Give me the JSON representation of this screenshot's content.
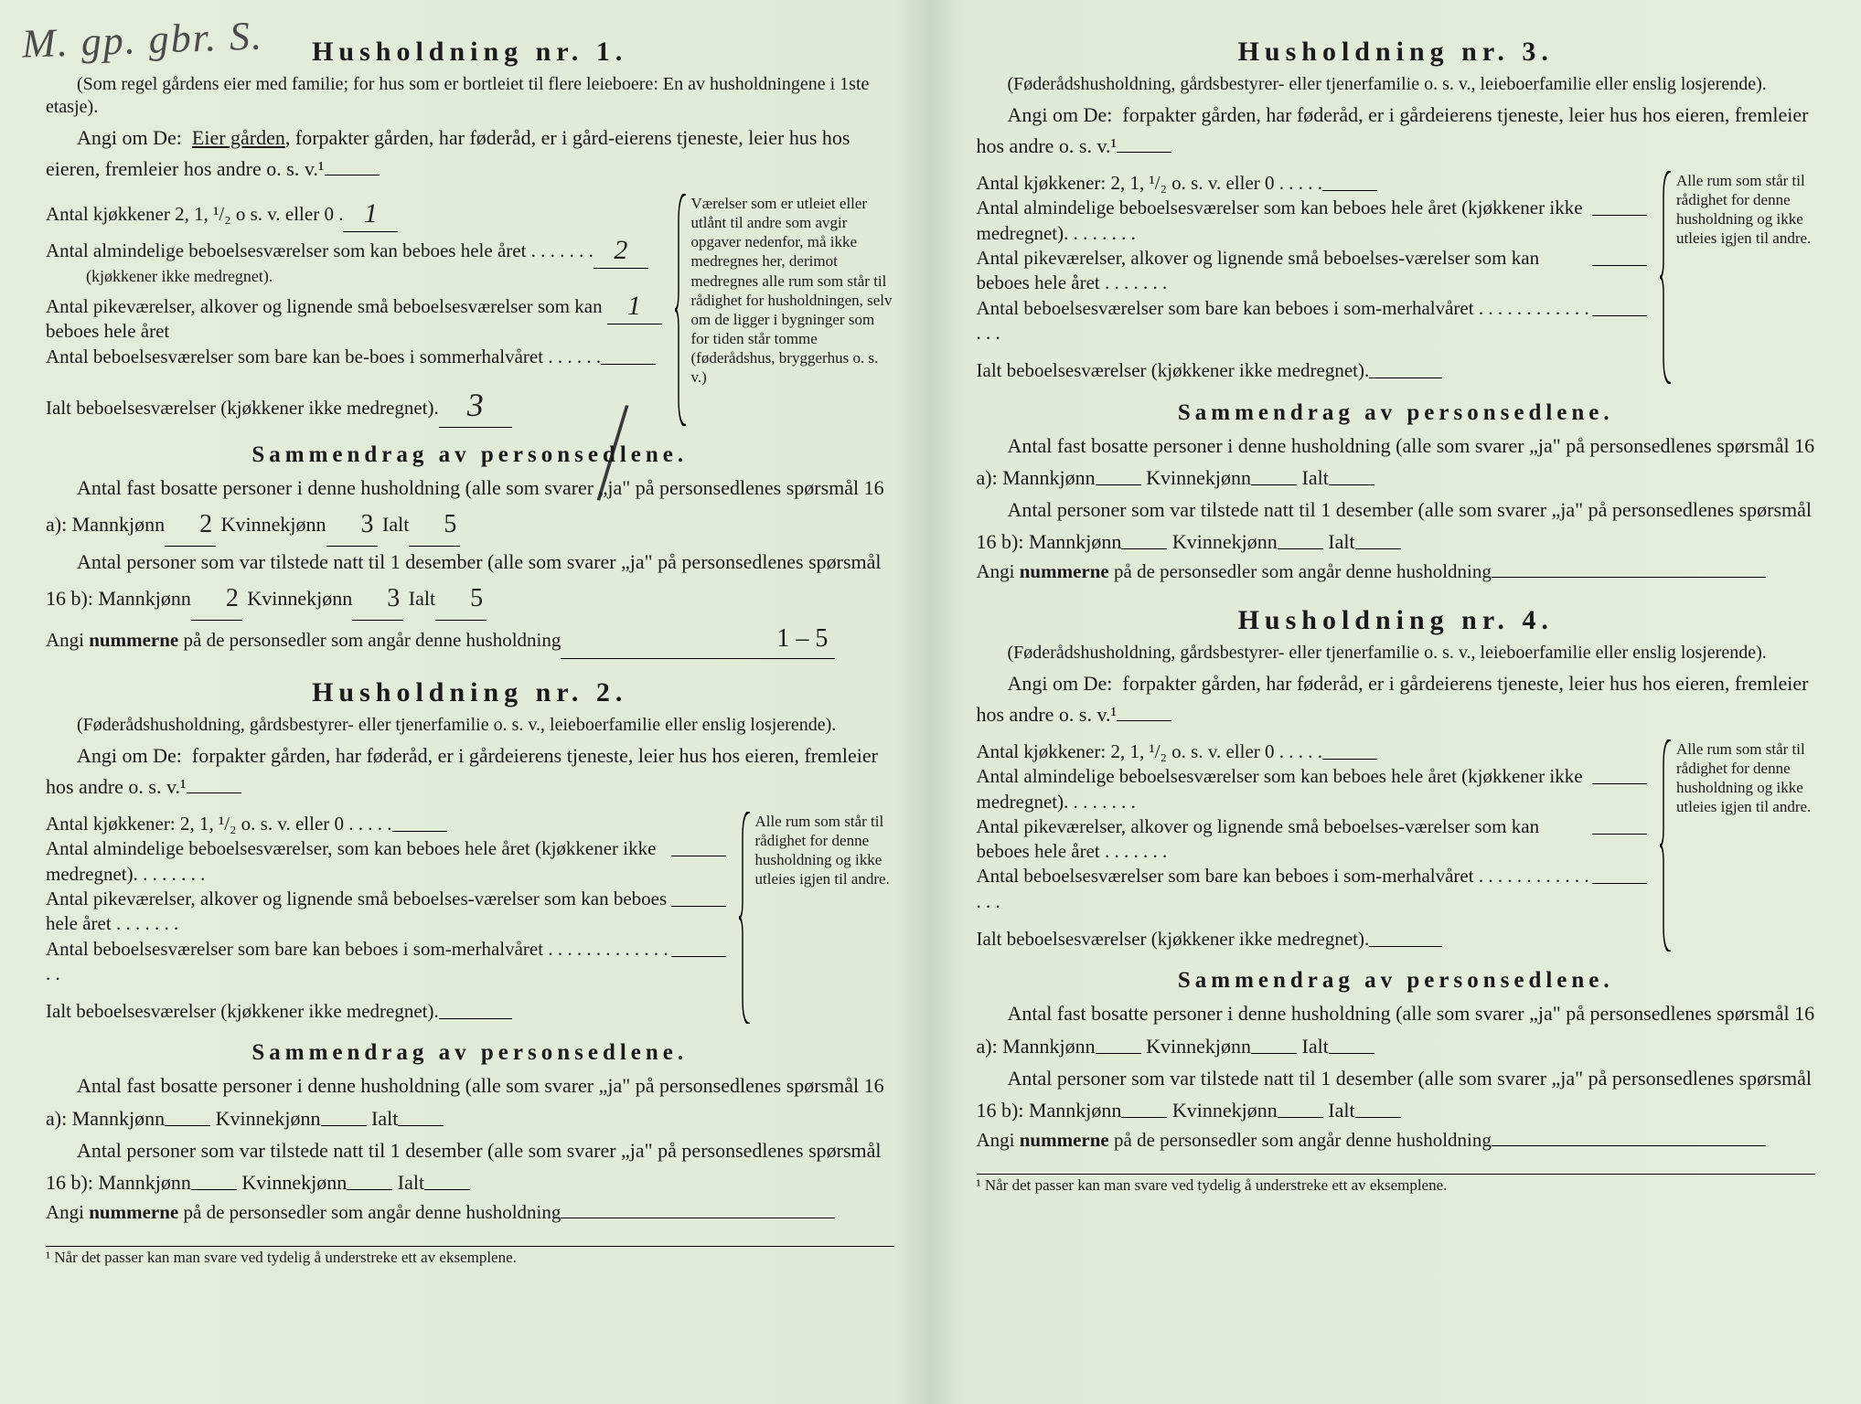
{
  "handwriting_topleft": "M. gp. gbr. S.",
  "households": [
    {
      "title": "Husholdning nr. 1.",
      "note": "(Som regel gårdens eier med familie; for hus som er bortleiet til flere leieboere: En av husholdningene i 1ste etasje).",
      "angi_prefix": "Angi om De:",
      "angi_rest_before": "Eier gården",
      "angi_rest_after": ", forpakter gården, har føderåd, er i gård-eierens tjeneste, leier hus hos eieren, fremleier hos andre o. s. v.¹",
      "angi_underline": true,
      "rooms": {
        "kjokkener_label": "Antal kjøkkener 2, 1, ¹/₂ o s. v. eller 0 .",
        "kjokkener_val": "1",
        "alm_label": "Antal almindelige beboelsesværelser som kan beboes hele året . . . . . . .",
        "alm_sub": "(kjøkkener ikke medregnet).",
        "alm_val": "2",
        "pike_label": "Antal pikeværelser, alkover og lignende små beboelsesværelser som kan beboes hele året",
        "pike_val": "1",
        "sommer_label": "Antal beboelsesværelser som bare kan be-boes i sommerhalvåret . . . . . .",
        "sommer_val": "",
        "ialt_label": "Ialt beboelsesværelser (kjøkkener ikke medregnet).",
        "ialt_val": "3",
        "sidenote": "Værelser som er utleiet eller utlånt til andre som avgir opgaver nedenfor, må ikke medregnes her, derimot medregnes alle rum som står til rådighet for husholdningen, selv om de ligger i bygninger som for tiden står tomme (føderådshus, bryggerhus o. s. v.)"
      },
      "samm": {
        "title": "Sammendrag av personsedlene.",
        "l1a": "Antal fast bosatte personer i denne husholdning (alle som svarer „ja\" på personsedlenes spørsmål 16 a): Mannkjønn",
        "l1_m": "2",
        "l1_kv_lbl": "Kvinnekjønn",
        "l1_k": "3",
        "l1_i_lbl": "Ialt",
        "l1_i": "5",
        "l2a": "Antal personer som var tilstede natt til 1 desember (alle som svarer „ja\" på personsedlenes spørsmål 16 b): Mannkjønn",
        "l2_m": "2",
        "l2_k": "3",
        "l2_i": "5",
        "angi_num": "Angi nummerne på de personsedler som angår denne husholdning",
        "num_val": "1 – 5"
      }
    },
    {
      "title": "Husholdning nr. 2.",
      "note": "(Føderådshusholdning, gårdsbestyrer- eller tjenerfamilie o. s. v., leieboerfamilie eller enslig losjerende).",
      "angi_prefix": "Angi om De:",
      "angi_rest_before": "",
      "angi_rest_after": "forpakter gården, har føderåd, er i gårdeierens tjeneste, leier hus hos eieren, fremleier hos andre o. s. v.¹",
      "angi_underline": false,
      "rooms": {
        "kjokkener_label": "Antal kjøkkener: 2, 1, ¹/₂ o. s. v. eller 0 . . . . .",
        "kjokkener_val": "",
        "alm_label": "Antal almindelige beboelsesværelser, som kan beboes hele året (kjøkkener ikke medregnet). . . . . . . .",
        "alm_sub": "",
        "alm_val": "",
        "pike_label": "Antal pikeværelser, alkover og lignende små beboelses-værelser som kan beboes hele året . . . . . . .",
        "pike_val": "",
        "sommer_label": "Antal beboelsesværelser som bare kan beboes i som-merhalvåret . . . . . . . . . . . . . . .",
        "sommer_val": "",
        "ialt_label": "Ialt beboelsesværelser (kjøkkener ikke medregnet).",
        "ialt_val": "",
        "sidenote": "Alle rum som står til rådighet for denne husholdning og ikke utleies igjen til andre."
      },
      "samm": {
        "title": "Sammendrag av personsedlene.",
        "l1a": "Antal fast bosatte personer i denne husholdning (alle som svarer „ja\" på personsedlenes spørsmål 16 a): Mannkjønn",
        "l1_m": "",
        "l1_kv_lbl": "Kvinnekjønn",
        "l1_k": "",
        "l1_i_lbl": "Ialt",
        "l1_i": "",
        "l2a": "Antal personer som var tilstede natt til 1 desember (alle som svarer „ja\" på personsedlenes spørsmål 16 b): Mannkjønn",
        "l2_m": "",
        "l2_k": "",
        "l2_i": "",
        "angi_num": "Angi nummerne på de personsedler som angår denne husholdning",
        "num_val": ""
      }
    },
    {
      "title": "Husholdning nr. 3.",
      "note": "(Føderådshusholdning, gårdsbestyrer- eller tjenerfamilie o. s. v., leieboerfamilie eller enslig losjerende).",
      "angi_prefix": "Angi om De:",
      "angi_rest_before": "",
      "angi_rest_after": "forpakter gården, har føderåd, er i gårdeierens tjeneste, leier hus hos eieren, fremleier hos andre o. s. v.¹",
      "angi_underline": false,
      "rooms": {
        "kjokkener_label": "Antal kjøkkener: 2, 1, ¹/₂ o. s. v. eller 0 . . . . .",
        "kjokkener_val": "",
        "alm_label": "Antal almindelige beboelsesværelser som kan beboes hele året (kjøkkener ikke medregnet). . . . . . . .",
        "alm_sub": "",
        "alm_val": "",
        "pike_label": "Antal pikeværelser, alkover og lignende små beboelses-værelser som kan beboes hele året . . . . . . .",
        "pike_val": "",
        "sommer_label": "Antal beboelsesværelser som bare kan beboes i som-merhalvåret . . . . . . . . . . . . . . .",
        "sommer_val": "",
        "ialt_label": "Ialt beboelsesværelser (kjøkkener ikke medregnet).",
        "ialt_val": "",
        "sidenote": "Alle rum som står til rådighet for denne husholdning og ikke utleies igjen til andre."
      },
      "samm": {
        "title": "Sammendrag av personsedlene.",
        "l1a": "Antal fast bosatte personer i denne husholdning (alle som svarer „ja\" på personsedlenes spørsmål 16 a): Mannkjønn",
        "l1_m": "",
        "l1_kv_lbl": "Kvinnekjønn",
        "l1_k": "",
        "l1_i_lbl": "Ialt",
        "l1_i": "",
        "l2a": "Antal personer som var tilstede natt til 1 desember (alle som svarer „ja\" på personsedlenes spørsmål 16 b): Mannkjønn",
        "l2_m": "",
        "l2_k": "",
        "l2_i": "",
        "angi_num": "Angi nummerne på de personsedler som angår denne husholdning",
        "num_val": ""
      }
    },
    {
      "title": "Husholdning nr. 4.",
      "note": "(Føderådshusholdning, gårdsbestyrer- eller tjenerfamilie o. s. v., leieboerfamilie eller enslig losjerende).",
      "angi_prefix": "Angi om De:",
      "angi_rest_before": "",
      "angi_rest_after": "forpakter gården, har føderåd, er i gårdeierens tjeneste, leier hus hos eieren, fremleier hos andre o. s. v.¹",
      "angi_underline": false,
      "rooms": {
        "kjokkener_label": "Antal kjøkkener: 2, 1, ¹/₂ o. s. v. eller 0 . . . . .",
        "kjokkener_val": "",
        "alm_label": "Antal almindelige beboelsesværelser som kan beboes hele året (kjøkkener ikke medregnet). . . . . . . .",
        "alm_sub": "",
        "alm_val": "",
        "pike_label": "Antal pikeværelser, alkover og lignende små beboelses-værelser som kan beboes hele året . . . . . . .",
        "pike_val": "",
        "sommer_label": "Antal beboelsesværelser som bare kan beboes i som-merhalvåret . . . . . . . . . . . . . . .",
        "sommer_val": "",
        "ialt_label": "Ialt beboelsesværelser (kjøkkener ikke medregnet).",
        "ialt_val": "",
        "sidenote": "Alle rum som står til rådighet for denne husholdning og ikke utleies igjen til andre."
      },
      "samm": {
        "title": "Sammendrag av personsedlene.",
        "l1a": "Antal fast bosatte personer i denne husholdning (alle som svarer „ja\" på personsedlenes spørsmål 16 a): Mannkjønn",
        "l1_m": "",
        "l1_kv_lbl": "Kvinnekjønn",
        "l1_k": "",
        "l1_i_lbl": "Ialt",
        "l1_i": "",
        "l2a": "Antal personer som var tilstede natt til 1 desember (alle som svarer „ja\" på personsedlenes spørsmål 16 b): Mannkjønn",
        "l2_m": "",
        "l2_k": "",
        "l2_i": "",
        "angi_num": "Angi nummerne på de personsedler som angår denne husholdning",
        "num_val": ""
      }
    }
  ],
  "footnote": "¹ Når det passer kan man svare ved tydelig å understreke ett av eksemplene.",
  "colors": {
    "paper": "#dfebd8",
    "ink": "#1a1a1a",
    "handwriting": "#3a3a3a"
  }
}
